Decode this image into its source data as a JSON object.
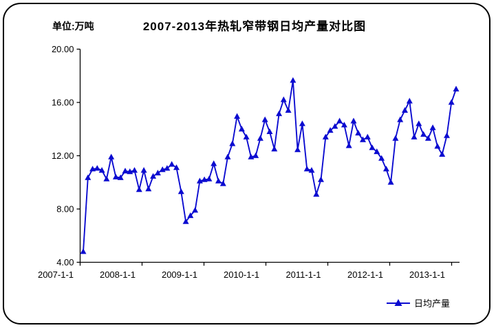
{
  "chart_data": {
    "type": "line",
    "title": "2007-2013年热轧窄带钢日均产量对比图",
    "unit_label": "单位:万吨",
    "xlabel": "",
    "ylabel": "",
    "ylim": [
      4,
      20
    ],
    "grid": false,
    "legend_position": "bottom-right",
    "line_color": "#0b0bd0",
    "marker": "triangle-up",
    "y_tick_labels": [
      "20.00",
      "16.00",
      "12.00",
      "8.00",
      "4.00"
    ],
    "x_tick_labels": [
      "2007-1-1",
      "2008-1-1",
      "2009-1-1",
      "2010-1-1",
      "2011-1-1",
      "2012-1-1",
      "2013-1-1"
    ],
    "series": [
      {
        "name": "日均产量",
        "values": [
          4.8,
          10.35,
          11.0,
          11.05,
          10.9,
          10.25,
          11.9,
          10.4,
          10.35,
          10.85,
          10.8,
          10.9,
          9.45,
          10.9,
          9.5,
          10.45,
          10.7,
          10.95,
          11.05,
          11.35,
          11.1,
          9.3,
          7.05,
          7.5,
          7.9,
          10.1,
          10.2,
          10.25,
          11.4,
          10.1,
          9.9,
          11.9,
          12.9,
          14.95,
          14.0,
          13.4,
          11.9,
          12.0,
          13.3,
          14.7,
          13.8,
          12.5,
          15.15,
          16.2,
          15.4,
          17.65,
          12.45,
          14.4,
          11.0,
          10.9,
          9.1,
          10.2,
          13.4,
          13.9,
          14.2,
          14.6,
          14.3,
          12.75,
          14.6,
          13.7,
          13.2,
          13.4,
          12.6,
          12.3,
          11.8,
          11.0,
          10.0,
          13.3,
          14.7,
          15.4,
          16.1,
          13.4,
          14.4,
          13.6,
          13.3,
          14.1,
          12.7,
          12.1,
          13.5,
          16.0,
          17.0
        ]
      }
    ]
  }
}
